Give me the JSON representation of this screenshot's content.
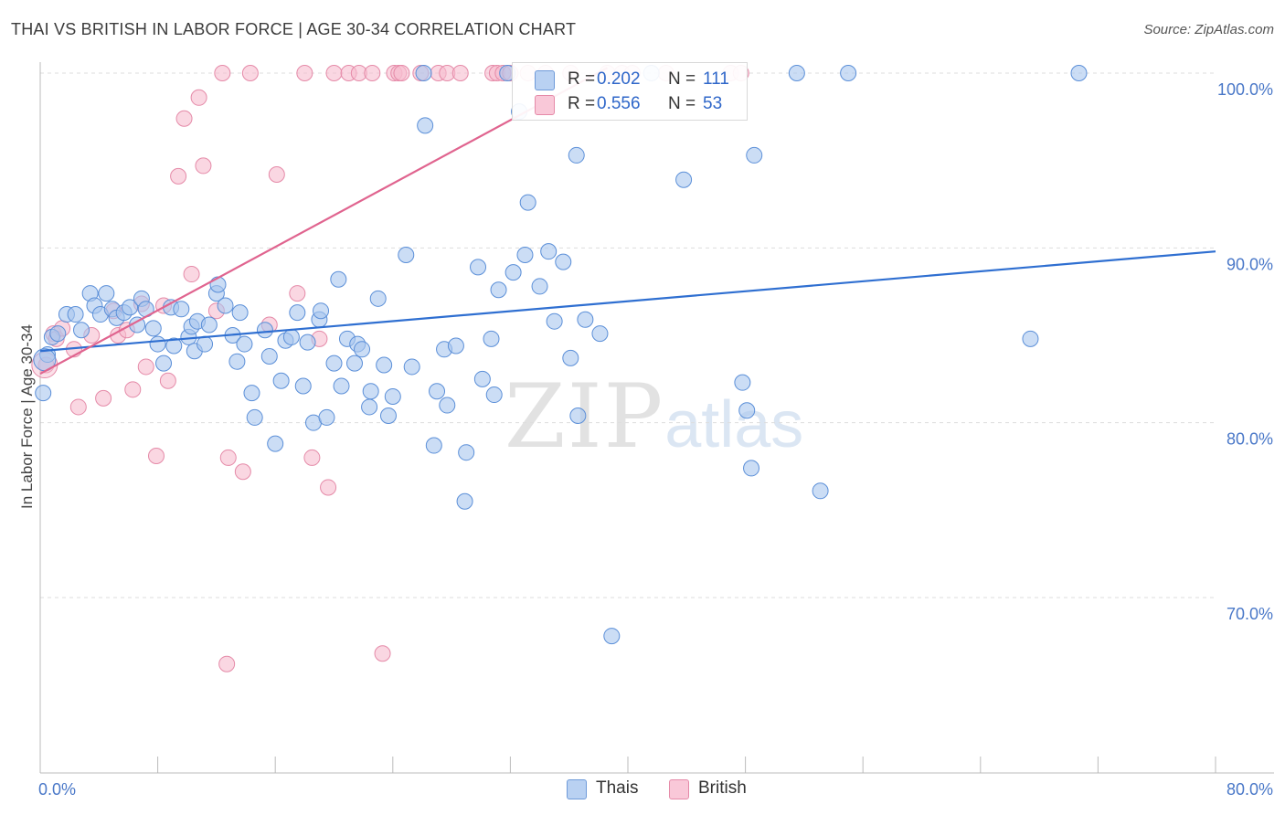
{
  "chart_data": {
    "type": "scatter",
    "title": "THAI VS BRITISH IN LABOR FORCE | AGE 30-34 CORRELATION CHART",
    "source": "Source: ZipAtlas.com",
    "xlabel": "",
    "ylabel": "In Labor Force | Age 30-34",
    "xlim": [
      0,
      80
    ],
    "ylim": [
      60,
      101
    ],
    "x_tick_labels": [
      {
        "value": 0,
        "label": "0.0%"
      },
      {
        "value": 80,
        "label": "80.0%"
      }
    ],
    "y_ticks": [
      {
        "value": 70,
        "label": "70.0%"
      },
      {
        "value": 80,
        "label": "80.0%"
      },
      {
        "value": 90,
        "label": "90.0%"
      },
      {
        "value": 100,
        "label": "100.0%"
      }
    ],
    "watermark": {
      "zip": "ZIP",
      "atlas": "atlas"
    },
    "legend": {
      "r_label": "R =",
      "n_label": "N =",
      "entries": [
        {
          "name": "Thais",
          "r": "0.202",
          "n": "111"
        },
        {
          "name": "British",
          "r": "0.556",
          "n": "53"
        }
      ]
    },
    "series": [
      {
        "name": "Thais",
        "color": "#a8c6ee",
        "edge": "#5b8fd8",
        "trend_color": "#2f6fd1",
        "trend": {
          "x0": 0,
          "y0": 84.1,
          "x1": 80,
          "y1": 89.8
        },
        "points": [
          [
            0.2,
            81.7
          ],
          [
            0.5,
            83.9
          ],
          [
            0.8,
            84.9
          ],
          [
            1.2,
            85.1
          ],
          [
            1.8,
            86.2
          ],
          [
            2.4,
            86.2
          ],
          [
            2.8,
            85.3
          ],
          [
            3.4,
            87.4
          ],
          [
            3.7,
            86.7
          ],
          [
            4.1,
            86.2
          ],
          [
            4.5,
            87.4
          ],
          [
            4.9,
            86.5
          ],
          [
            5.2,
            86.0
          ],
          [
            5.7,
            86.3
          ],
          [
            6.1,
            86.6
          ],
          [
            6.6,
            85.6
          ],
          [
            6.9,
            87.1
          ],
          [
            7.2,
            86.5
          ],
          [
            7.7,
            85.4
          ],
          [
            8.0,
            84.5
          ],
          [
            8.4,
            83.4
          ],
          [
            8.9,
            86.6
          ],
          [
            9.1,
            84.4
          ],
          [
            9.6,
            86.5
          ],
          [
            10.1,
            84.9
          ],
          [
            10.3,
            85.5
          ],
          [
            10.5,
            84.1
          ],
          [
            10.7,
            85.8
          ],
          [
            11.2,
            84.5
          ],
          [
            11.5,
            85.6
          ],
          [
            12.0,
            87.4
          ],
          [
            12.1,
            87.9
          ],
          [
            12.6,
            86.7
          ],
          [
            13.1,
            85.0
          ],
          [
            13.4,
            83.5
          ],
          [
            13.6,
            86.3
          ],
          [
            13.9,
            84.5
          ],
          [
            14.4,
            81.7
          ],
          [
            14.6,
            80.3
          ],
          [
            15.3,
            85.3
          ],
          [
            15.6,
            83.8
          ],
          [
            16.0,
            78.8
          ],
          [
            16.4,
            82.4
          ],
          [
            16.7,
            84.7
          ],
          [
            17.1,
            84.9
          ],
          [
            17.5,
            86.3
          ],
          [
            17.9,
            82.1
          ],
          [
            18.2,
            84.6
          ],
          [
            18.6,
            80.0
          ],
          [
            19.0,
            85.9
          ],
          [
            19.1,
            86.4
          ],
          [
            19.5,
            80.3
          ],
          [
            20.0,
            83.4
          ],
          [
            20.3,
            88.2
          ],
          [
            20.5,
            82.1
          ],
          [
            20.9,
            84.8
          ],
          [
            21.4,
            83.4
          ],
          [
            21.6,
            84.5
          ],
          [
            21.9,
            84.2
          ],
          [
            22.4,
            80.9
          ],
          [
            22.5,
            81.8
          ],
          [
            23.0,
            87.1
          ],
          [
            23.4,
            83.3
          ],
          [
            23.7,
            80.4
          ],
          [
            24.0,
            81.5
          ],
          [
            24.9,
            89.6
          ],
          [
            25.3,
            83.2
          ],
          [
            26.1,
            100
          ],
          [
            26.2,
            97.0
          ],
          [
            26.8,
            78.7
          ],
          [
            27.0,
            81.8
          ],
          [
            27.5,
            84.2
          ],
          [
            27.7,
            81.0
          ],
          [
            28.3,
            84.4
          ],
          [
            28.9,
            75.5
          ],
          [
            29.0,
            78.3
          ],
          [
            29.8,
            88.9
          ],
          [
            30.1,
            82.5
          ],
          [
            30.7,
            84.8
          ],
          [
            30.9,
            81.6
          ],
          [
            31.2,
            87.6
          ],
          [
            31.8,
            100
          ],
          [
            32.2,
            88.6
          ],
          [
            32.6,
            97.8
          ],
          [
            33.0,
            89.6
          ],
          [
            33.2,
            92.6
          ],
          [
            34.0,
            87.8
          ],
          [
            34.6,
            89.8
          ],
          [
            35.0,
            85.8
          ],
          [
            35.6,
            89.2
          ],
          [
            36.1,
            83.7
          ],
          [
            36.5,
            95.3
          ],
          [
            36.6,
            80.4
          ],
          [
            37.1,
            85.9
          ],
          [
            38.1,
            85.1
          ],
          [
            38.9,
            67.8
          ],
          [
            41.6,
            100
          ],
          [
            43.8,
            93.9
          ],
          [
            47.8,
            82.3
          ],
          [
            48.1,
            80.7
          ],
          [
            48.4,
            77.4
          ],
          [
            48.6,
            95.3
          ],
          [
            51.5,
            100
          ],
          [
            53.1,
            76.1
          ],
          [
            55.0,
            100
          ],
          [
            67.4,
            84.8
          ],
          [
            70.7,
            100
          ]
        ]
      },
      {
        "name": "British",
        "color": "#f7bccf",
        "edge": "#e58aa8",
        "trend_color": "#e0648f",
        "trend": {
          "x0": 0,
          "y0": 82.8,
          "x1": 38.6,
          "y1": 100.3
        },
        "points": [
          [
            0.4,
            83.3
          ],
          [
            0.9,
            85.1
          ],
          [
            1.1,
            84.8
          ],
          [
            1.5,
            85.4
          ],
          [
            2.3,
            84.2
          ],
          [
            2.6,
            80.9
          ],
          [
            3.5,
            85.0
          ],
          [
            4.3,
            81.4
          ],
          [
            5.0,
            86.4
          ],
          [
            5.3,
            85.0
          ],
          [
            5.9,
            85.3
          ],
          [
            6.3,
            81.9
          ],
          [
            6.9,
            86.8
          ],
          [
            7.2,
            83.2
          ],
          [
            7.9,
            78.1
          ],
          [
            8.4,
            86.7
          ],
          [
            8.7,
            82.4
          ],
          [
            9.4,
            94.1
          ],
          [
            9.8,
            97.4
          ],
          [
            10.3,
            88.5
          ],
          [
            10.8,
            98.6
          ],
          [
            11.1,
            94.7
          ],
          [
            12.0,
            86.4
          ],
          [
            12.4,
            100
          ],
          [
            12.7,
            66.2
          ],
          [
            12.8,
            78.0
          ],
          [
            13.8,
            77.2
          ],
          [
            14.3,
            100
          ],
          [
            15.6,
            85.6
          ],
          [
            16.1,
            94.2
          ],
          [
            17.5,
            87.4
          ],
          [
            18.0,
            100
          ],
          [
            18.5,
            78.0
          ],
          [
            19.0,
            84.8
          ],
          [
            19.6,
            76.3
          ],
          [
            20.0,
            100
          ],
          [
            21.0,
            100
          ],
          [
            21.7,
            100
          ],
          [
            22.6,
            100
          ],
          [
            23.3,
            66.8
          ],
          [
            24.1,
            100
          ],
          [
            24.4,
            100
          ],
          [
            24.6,
            100
          ],
          [
            25.9,
            100
          ],
          [
            27.1,
            100
          ],
          [
            27.7,
            100
          ],
          [
            28.6,
            100
          ],
          [
            30.8,
            100
          ],
          [
            31.1,
            100
          ],
          [
            31.5,
            100
          ],
          [
            32.0,
            100
          ],
          [
            33.2,
            100
          ],
          [
            34.4,
            100
          ],
          [
            36.1,
            100
          ],
          [
            38.6,
            100
          ],
          [
            39.6,
            100
          ],
          [
            40.3,
            100
          ],
          [
            42.6,
            100
          ],
          [
            47.0,
            100
          ],
          [
            47.7,
            100
          ]
        ]
      }
    ]
  }
}
